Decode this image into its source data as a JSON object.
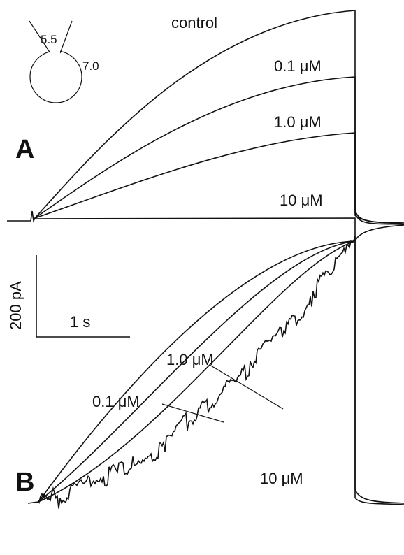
{
  "panel_a": {
    "label": "A",
    "pipette": {
      "inside": "5.5",
      "outside": "7.0"
    },
    "traces": [
      "control",
      "0.1 μM",
      "1.0 μM",
      "10 μM"
    ]
  },
  "scale_bar": {
    "vertical": "200 pA",
    "horizontal": "1 s"
  },
  "panel_b": {
    "label": "B",
    "traces": [
      "1.0 μM",
      "0.1 μM",
      "10 μM"
    ]
  }
}
